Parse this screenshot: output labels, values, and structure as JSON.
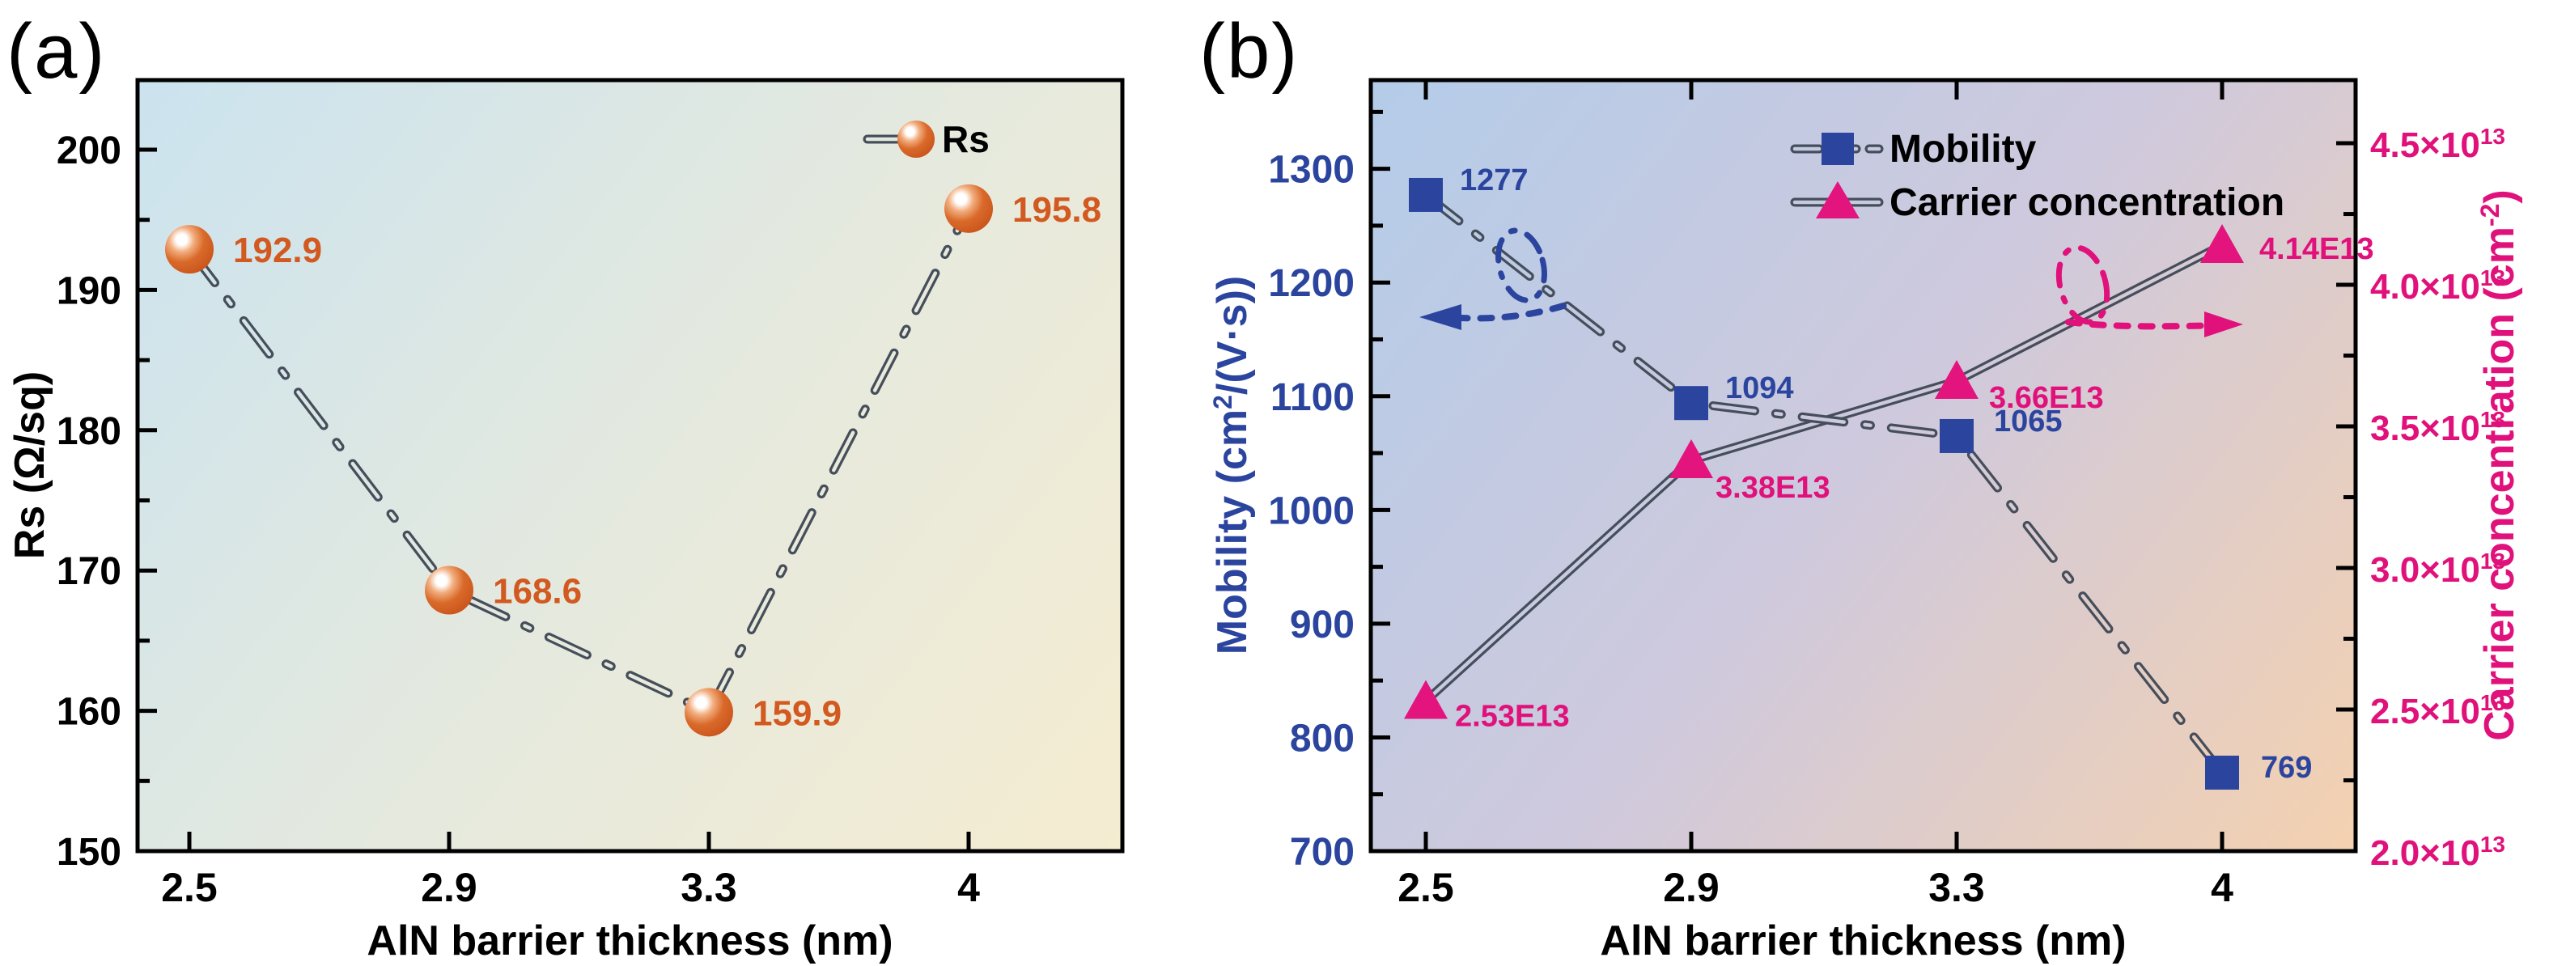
{
  "figure": {
    "panel_a_tag": "(a)",
    "panel_b_tag": "(b)"
  },
  "colors": {
    "sphere_orange": "#d4611f",
    "orange_label": "#d2591f",
    "accent_blue": "#2b459f",
    "accent_pink": "#e0117b",
    "triangle_pink": "#e4147e",
    "line_gray": "#454e5a",
    "axis_black": "#000000",
    "panel_a_bg": [
      "#cbe3ef",
      "#e4e9df",
      "#f5ecd1"
    ],
    "panel_b_bg": [
      "#b4cce9",
      "#cfc9dd",
      "#f4d1b0"
    ]
  },
  "chart_data": [
    {
      "id": "a",
      "type": "line",
      "title": "",
      "xlabel": "AlN barrier thickness (nm)",
      "ylabel_parts": [
        {
          "t": "Rs (Ω/sq)"
        }
      ],
      "categories": [
        "2.5",
        "2.9",
        "3.3",
        "4"
      ],
      "x_values": [
        2.5,
        2.9,
        3.3,
        4
      ],
      "ylim": [
        150,
        204.96
      ],
      "yticks": [
        150,
        160,
        170,
        180,
        190,
        200
      ],
      "ytick_labels": [
        "150",
        "160",
        "170",
        "180",
        "190",
        "200"
      ],
      "y_minor_step": 5,
      "grid": false,
      "legend_position": "top-right-inside",
      "series": [
        {
          "name": "Rs",
          "marker": "sphere",
          "line_style": "dash-dot",
          "values": [
            192.9,
            168.6,
            159.9,
            195.8
          ],
          "point_labels": [
            "192.9",
            "168.6",
            "159.9",
            "195.8"
          ]
        }
      ]
    },
    {
      "id": "b",
      "type": "line",
      "title": "",
      "xlabel": "AlN barrier thickness (nm)",
      "categories": [
        "2.5",
        "2.9",
        "3.3",
        "4"
      ],
      "x_values": [
        2.5,
        2.9,
        3.3,
        4
      ],
      "left_axis": {
        "label_parts": [
          {
            "t": "Mobility (cm"
          },
          {
            "t": "2",
            "sup": true
          },
          {
            "t": "/(V·s))"
          }
        ],
        "ylim": [
          700,
          1378
        ],
        "ticks": [
          700,
          800,
          900,
          1000,
          1100,
          1200,
          1300
        ],
        "tick_labels": [
          "700",
          "800",
          "900",
          "1000",
          "1100",
          "1200",
          "1300"
        ],
        "minor_step": 50
      },
      "right_axis": {
        "label_parts": [
          {
            "t": "Carrier concentration (cm"
          },
          {
            "t": "-2",
            "sup": true
          },
          {
            "t": ")"
          }
        ],
        "ylim_e13": [
          2.0,
          4.723
        ],
        "ticks_e13": [
          2.0,
          2.5,
          3.0,
          3.5,
          4.0,
          4.5
        ],
        "tick_label_parts": [
          [
            {
              "t": "2.0×10"
            },
            {
              "t": "13",
              "sup": true
            }
          ],
          [
            {
              "t": "2.5×10"
            },
            {
              "t": "13",
              "sup": true
            }
          ],
          [
            {
              "t": "3.0×10"
            },
            {
              "t": "13",
              "sup": true
            }
          ],
          [
            {
              "t": "3.5×10"
            },
            {
              "t": "13",
              "sup": true
            }
          ],
          [
            {
              "t": "4.0×10"
            },
            {
              "t": "13",
              "sup": true
            }
          ],
          [
            {
              "t": "4.5×10"
            },
            {
              "t": "13",
              "sup": true
            }
          ]
        ],
        "minor_step_e13": 0.25
      },
      "legend_position": "top-right-inside",
      "series": [
        {
          "name": "Mobility",
          "axis": "left",
          "marker": "square",
          "line_style": "dash-dot",
          "values": [
            1277,
            1094,
            1065,
            769
          ],
          "point_labels": [
            "1277",
            "1094",
            "1065",
            "769"
          ]
        },
        {
          "name": "Carrier concentration",
          "axis": "right",
          "marker": "triangle",
          "line_style": "solid",
          "values_e13": [
            2.53,
            3.38,
            3.66,
            4.14
          ],
          "point_labels": [
            "2.53E13",
            "3.38E13",
            "3.66E13",
            "4.14E13"
          ]
        }
      ],
      "annotations": [
        {
          "type": "axis-pointer",
          "direction": "left",
          "meaning": "Mobility curve reads left axis"
        },
        {
          "type": "axis-pointer",
          "direction": "right",
          "meaning": "Carrier concentration curve reads right axis"
        }
      ]
    }
  ]
}
